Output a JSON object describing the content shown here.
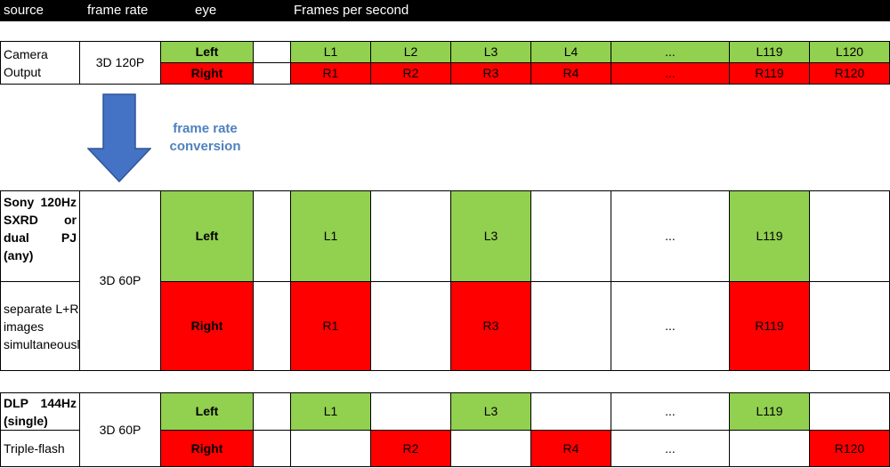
{
  "header": {
    "source": "source",
    "frame_rate": "frame rate",
    "eye": "eye",
    "fps": "Frames per second"
  },
  "camera": {
    "source": "Camera Output",
    "frame_rate": "3D 120P",
    "left_label": "Left",
    "right_label": "Right",
    "left_frames": [
      "L1",
      "L2",
      "L3",
      "L4",
      "...",
      "L119",
      "L120"
    ],
    "right_frames": [
      "R1",
      "R2",
      "R3",
      "R4",
      "...",
      "R119",
      "R120"
    ]
  },
  "conversion": {
    "label": "frame rate conversion",
    "arrow_icon": "down-arrow-icon",
    "arrow_color": "#4472c4"
  },
  "sony": {
    "source_top": "Sony 120Hz SXRD or dual PJ (any)",
    "source_bottom": "separate L+R images simultaneously",
    "frame_rate": "3D 60P",
    "left_label": "Left",
    "right_label": "Right",
    "left_frames": [
      "L1",
      "",
      "L3",
      "",
      "...",
      "L119",
      ""
    ],
    "right_frames": [
      "R1",
      "",
      "R3",
      "",
      "...",
      "R119",
      ""
    ]
  },
  "dlp": {
    "source_top": "DLP 144Hz (single)",
    "source_bottom": "Triple-flash",
    "frame_rate": "3D 60P",
    "left_label": "Left",
    "right_label": "Right",
    "left_frames": [
      "L1",
      "",
      "L3",
      "",
      "...",
      "L119",
      ""
    ],
    "right_frames": [
      "",
      "R2",
      "",
      "R4",
      "...",
      "",
      "R120"
    ]
  },
  "colors": {
    "left_green": "#92d050",
    "right_red": "#ff0000",
    "conversion_text": "#4f81bd",
    "header_bg": "#000000"
  }
}
